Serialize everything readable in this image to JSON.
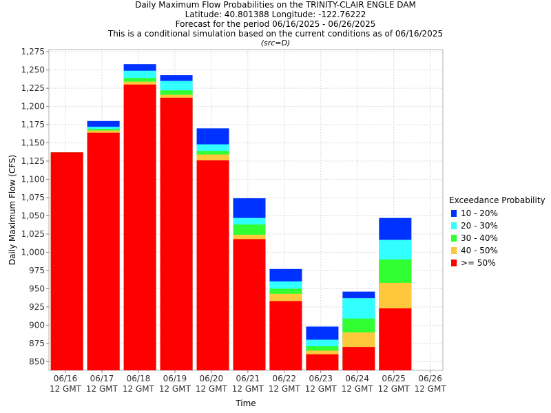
{
  "header": {
    "line1": "Daily Maximum Flow Probabilities on the TRINITY-CLAIR ENGLE DAM",
    "line2": "Latitude: 40.801388 Longitude: -122.76222",
    "line3": "Forecast for the period 06/16/2025 - 06/26/2025",
    "line4": "This is a conditional simulation based on the current conditions as of 06/16/2025",
    "src": "(src=D)"
  },
  "chart_data": {
    "type": "bar",
    "stacked": true,
    "title": "Daily Maximum Flow Probabilities on the TRINITY-CLAIR ENGLE DAM",
    "xlabel": "Time",
    "ylabel": "Daily Maximum Flow (CFS)",
    "ylim": [
      838,
      1278
    ],
    "yticks": [
      850,
      875,
      900,
      925,
      950,
      975,
      1000,
      1025,
      1050,
      1075,
      1100,
      1125,
      1150,
      1175,
      1200,
      1225,
      1250,
      1275
    ],
    "ytick_labels": [
      "850",
      "875",
      "900",
      "925",
      "950",
      "975",
      "1,000",
      "1,025",
      "1,050",
      "1,075",
      "1,100",
      "1,125",
      "1,150",
      "1,175",
      "1,200",
      "1,225",
      "1,250",
      "1,275"
    ],
    "xticks": [
      {
        "date": "06/16",
        "time": "12 GMT"
      },
      {
        "date": "06/17",
        "time": "12 GMT"
      },
      {
        "date": "06/18",
        "time": "12 GMT"
      },
      {
        "date": "06/19",
        "time": "12 GMT"
      },
      {
        "date": "06/20",
        "time": "12 GMT"
      },
      {
        "date": "06/21",
        "time": "12 GMT"
      },
      {
        "date": "06/22",
        "time": "12 GMT"
      },
      {
        "date": "06/23",
        "time": "12 GMT"
      },
      {
        "date": "06/24",
        "time": "12 GMT"
      },
      {
        "date": "06/25",
        "time": "12 GMT"
      },
      {
        "date": "06/26",
        "time": "12 GMT"
      }
    ],
    "grid": true,
    "legend_title": "Exceedance Probability",
    "legend_position": "right",
    "series": [
      {
        "name": ">= 50%",
        "color": "#ff0000",
        "top": [
          1137,
          1164,
          1230,
          1212,
          1126,
          1018,
          933,
          860,
          870,
          923
        ]
      },
      {
        "name": "40 - 50%",
        "color": "#ffc83c",
        "top": [
          1137,
          1167,
          1234,
          1216,
          1134,
          1024,
          943,
          865,
          890,
          958
        ]
      },
      {
        "name": "30 - 40%",
        "color": "#32ff32",
        "top": [
          1137,
          1169,
          1239,
          1222,
          1139,
          1038,
          950,
          871,
          909,
          990
        ]
      },
      {
        "name": "20 - 30%",
        "color": "#32ffff",
        "top": [
          1137,
          1172,
          1249,
          1235,
          1148,
          1047,
          960,
          880,
          937,
          1017
        ]
      },
      {
        "name": "10 - 20%",
        "color": "#0032ff",
        "top": [
          1137,
          1180,
          1258,
          1243,
          1170,
          1074,
          977,
          898,
          946,
          1047
        ]
      }
    ],
    "legend_order": [
      4,
      3,
      2,
      1,
      0
    ]
  }
}
